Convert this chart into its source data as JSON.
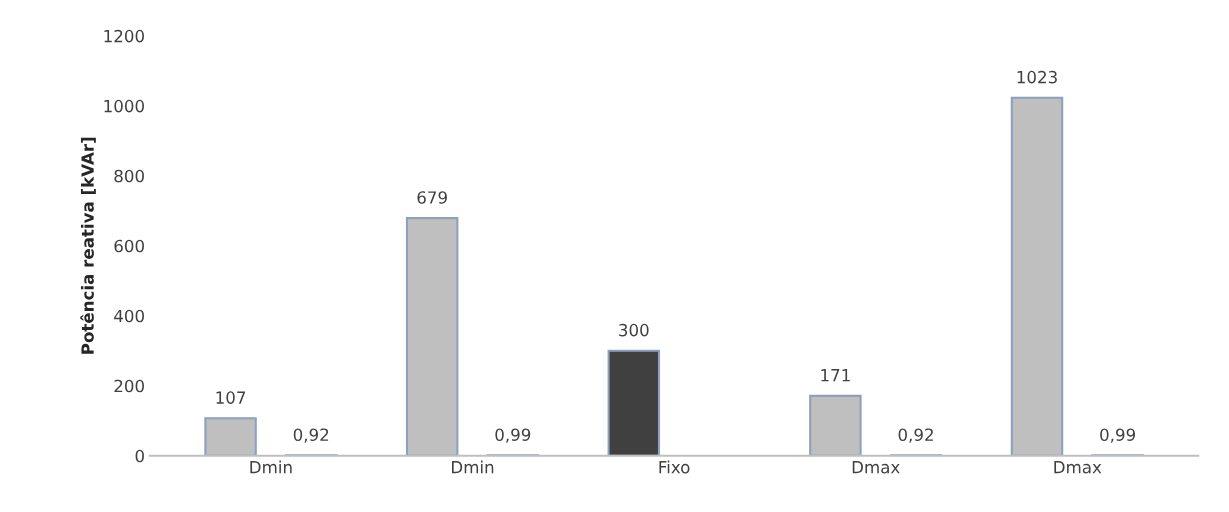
{
  "chart_data": {
    "type": "bar",
    "ylabel": "Potência reativa [kVAr]",
    "categories": [
      "Dmin",
      "Dmin",
      "Fixo",
      "Dmax",
      "Dmax"
    ],
    "series": [
      {
        "colors": [
          "#bfbfbf",
          "#bfbfbf",
          "#404040",
          "#bfbfbf",
          "#bfbfbf"
        ],
        "values": [
          107,
          679,
          300,
          171,
          1023
        ]
      },
      {
        "values": [
          0.92,
          0.99,
          null,
          0.92,
          0.99
        ],
        "value_labels": [
          "0,92",
          "0,99",
          null,
          "0,92",
          "0,99"
        ]
      }
    ],
    "data_labels": true,
    "ylim": [
      0,
      1200
    ],
    "yticks": [
      0,
      200,
      400,
      600,
      800,
      1000,
      1200
    ],
    "grid": false,
    "legend": false
  }
}
